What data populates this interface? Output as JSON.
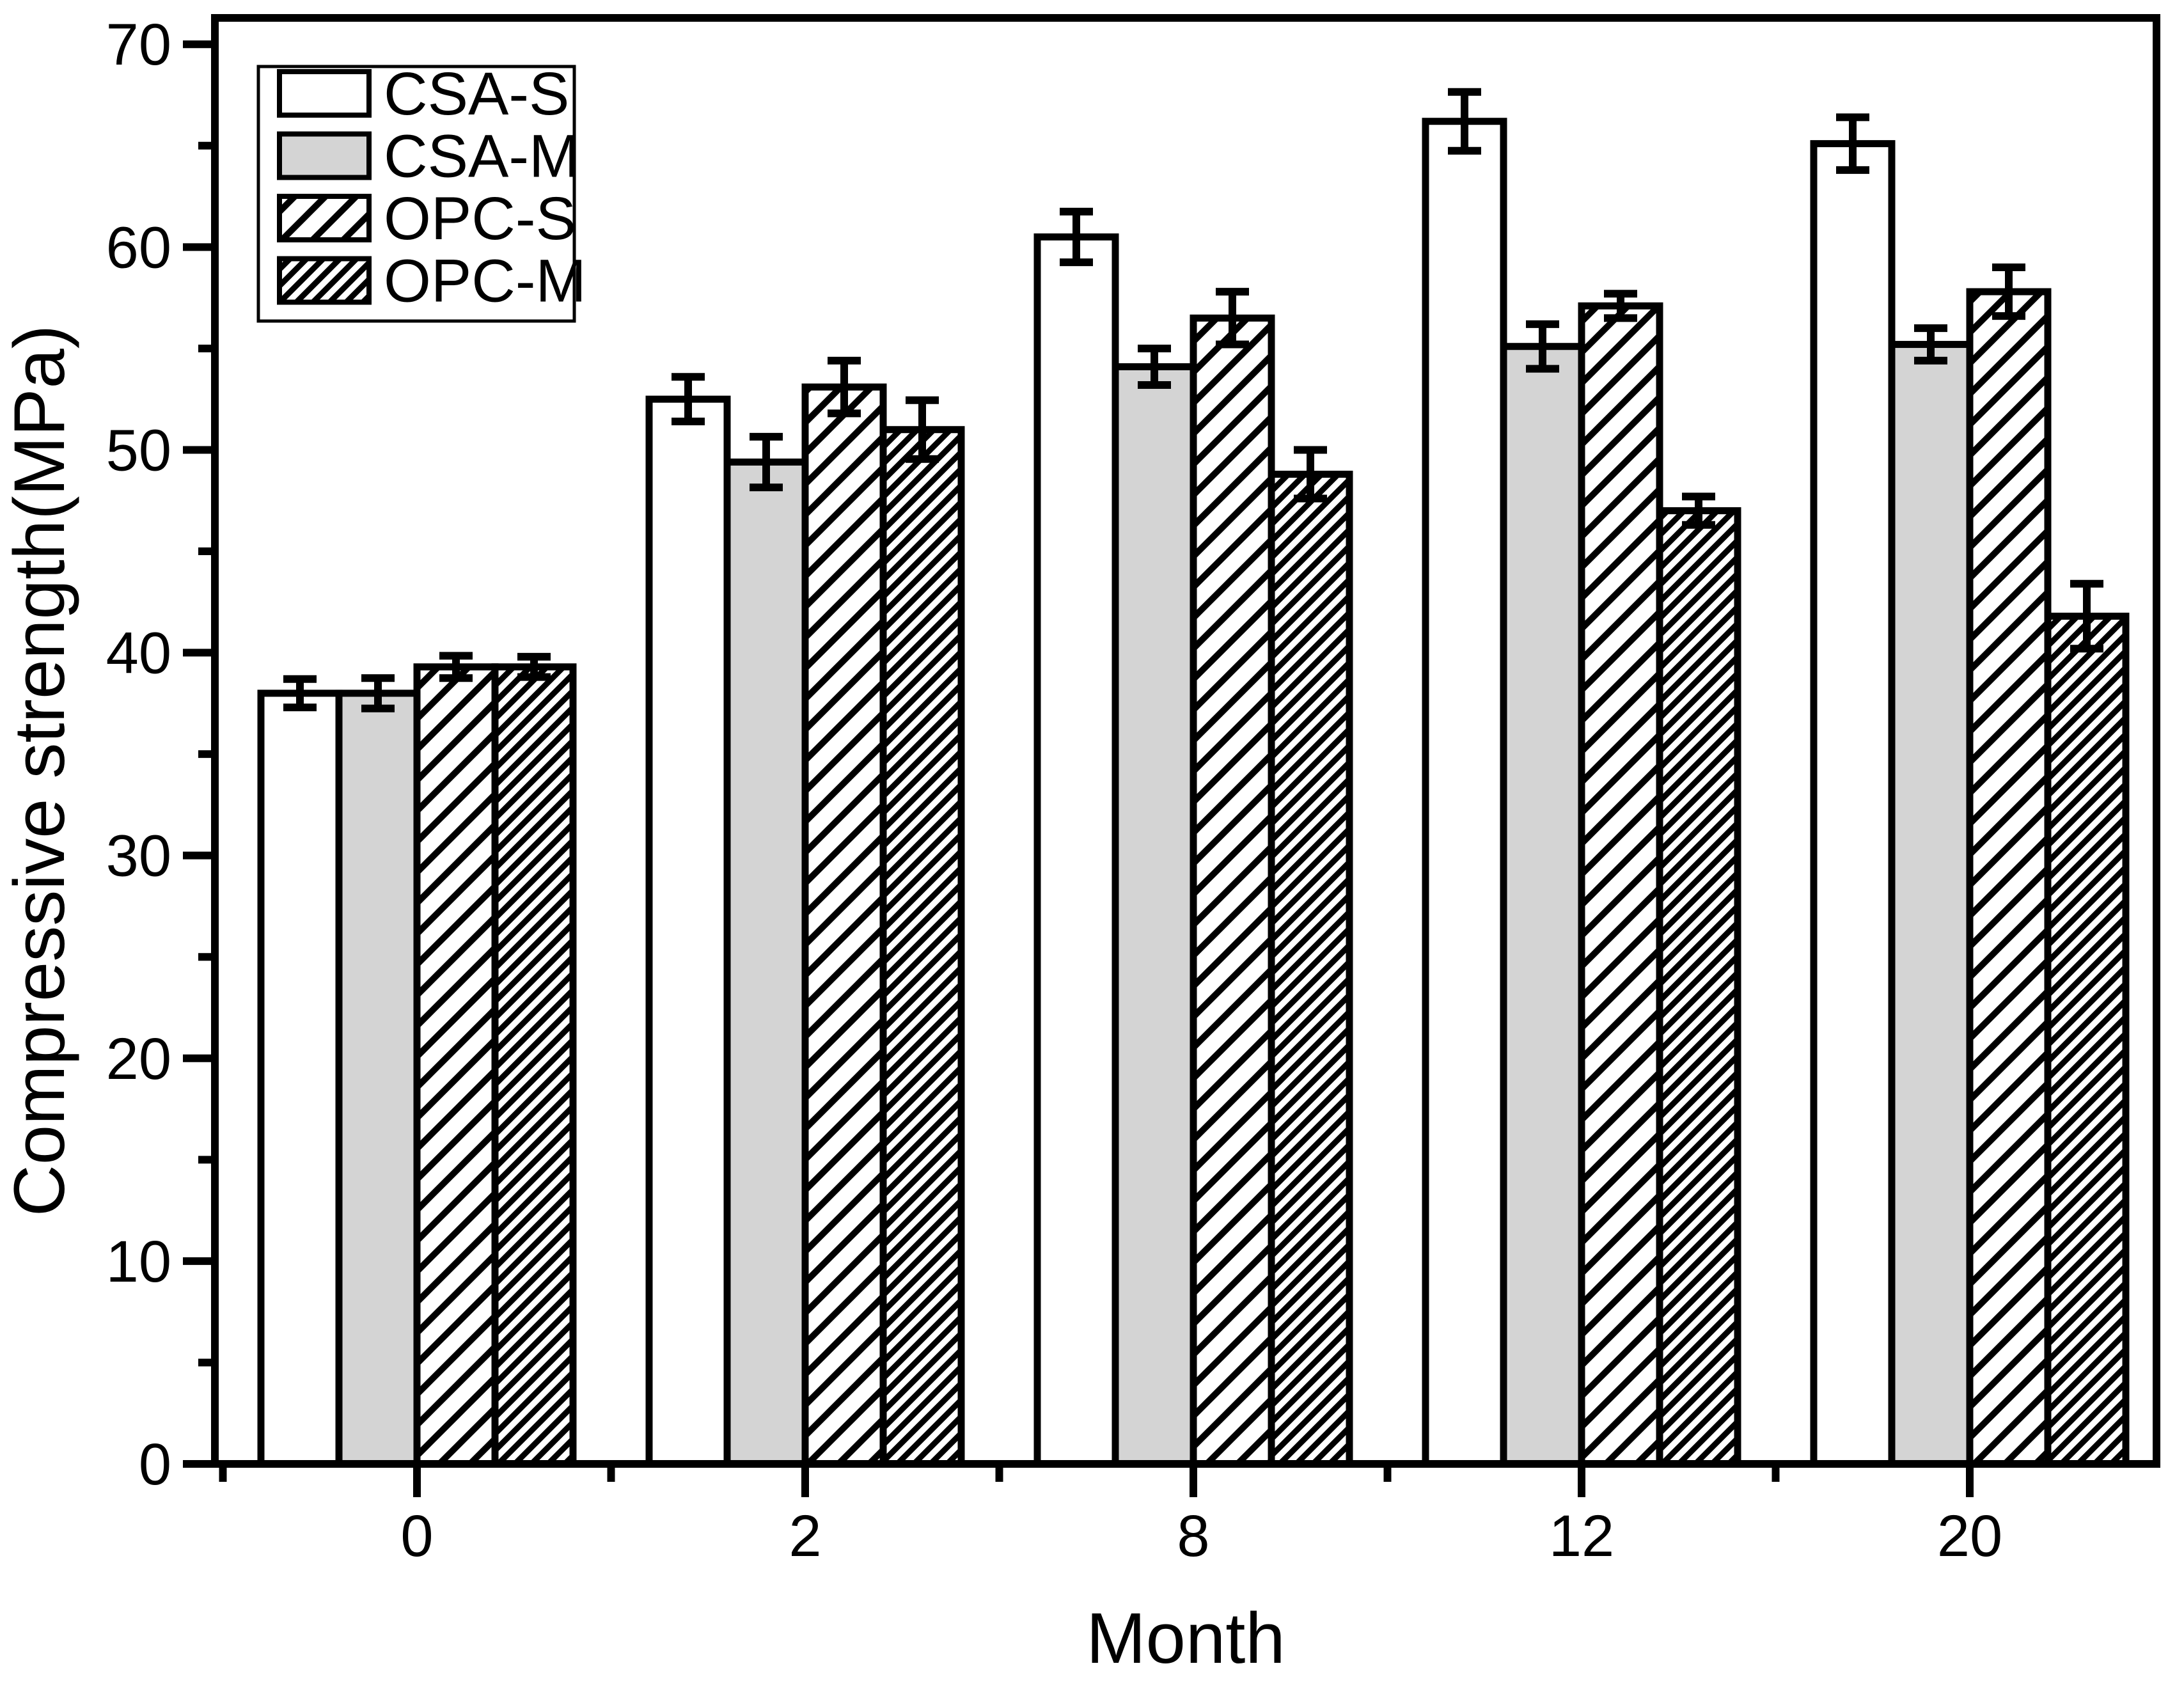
{
  "chart_data": {
    "type": "bar",
    "title": "",
    "xlabel": "Month",
    "ylabel": "Compressive strength(MPa)",
    "categories": [
      "0",
      "2",
      "8",
      "12",
      "20"
    ],
    "series": [
      {
        "name": "CSA-S",
        "fill": "#ffffff",
        "hatch": "none",
        "values": [
          38.0,
          52.5,
          60.5,
          66.2,
          65.1
        ],
        "errors": [
          0.7,
          1.1,
          1.25,
          1.45,
          1.3
        ]
      },
      {
        "name": "CSA-M",
        "fill": "#d4d4d4",
        "hatch": "none",
        "values": [
          38.0,
          49.4,
          54.1,
          55.1,
          55.2
        ],
        "errors": [
          0.75,
          1.25,
          0.9,
          1.1,
          0.8
        ]
      },
      {
        "name": "OPC-S",
        "fill": "#ffffff",
        "hatch": "sparse",
        "values": [
          39.3,
          53.1,
          56.5,
          57.1,
          57.8
        ],
        "errors": [
          0.55,
          1.3,
          1.3,
          0.6,
          1.2
        ]
      },
      {
        "name": "OPC-M",
        "fill": "#ffffff",
        "hatch": "dense",
        "values": [
          39.3,
          51.0,
          48.8,
          47.0,
          41.8
        ],
        "errors": [
          0.5,
          1.45,
          1.2,
          0.7,
          1.6
        ]
      }
    ],
    "ylim": [
      0,
      71.3
    ],
    "yticks_major": [
      0,
      10,
      20,
      30,
      40,
      50,
      60,
      70
    ],
    "ytick_minor_step": 5,
    "grid": "off",
    "legend_position": "top-left",
    "error_bars": "symmetric, black caps",
    "colors": {
      "axis": "#000000",
      "bar_outline": "#000000",
      "gray_fill": "#d4d4d4",
      "background": "#ffffff"
    }
  }
}
